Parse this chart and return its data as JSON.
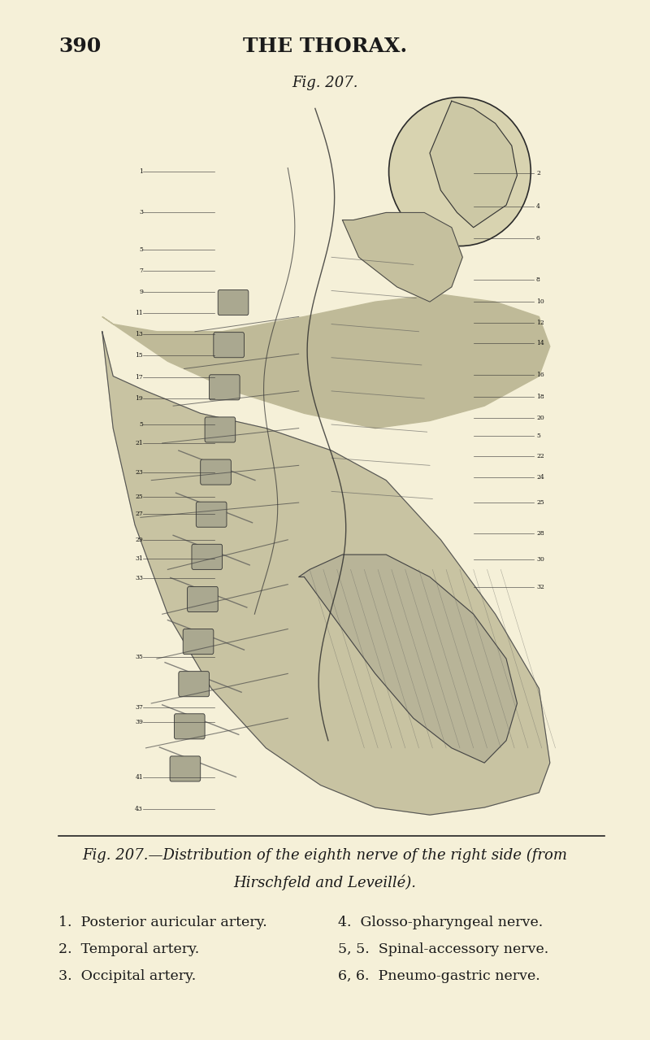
{
  "background_color": "#f5f0d8",
  "page_number": "390",
  "header_title": "THE THORAX.",
  "fig_label": "Fig. 207.",
  "caption_line1": "Fig. 207.—Distribution of the eighth nerve of the right side (from",
  "caption_line2": "Hirschfeld and Leveillé).",
  "legend_left": [
    "1.  Posterior auricular artery.",
    "2.  Temporal artery.",
    "3.  Occipital artery."
  ],
  "legend_right": [
    "4.  Glosso-pharyngeal nerve.",
    "5, 5.  Spinal-accessory nerve.",
    "6, 6.  Pneumo-gastric nerve."
  ],
  "text_color": "#1a1a1a",
  "header_fontsize": 18,
  "page_num_fontsize": 18,
  "fig_label_fontsize": 13,
  "caption_fontsize": 13,
  "legend_fontsize": 12.5
}
